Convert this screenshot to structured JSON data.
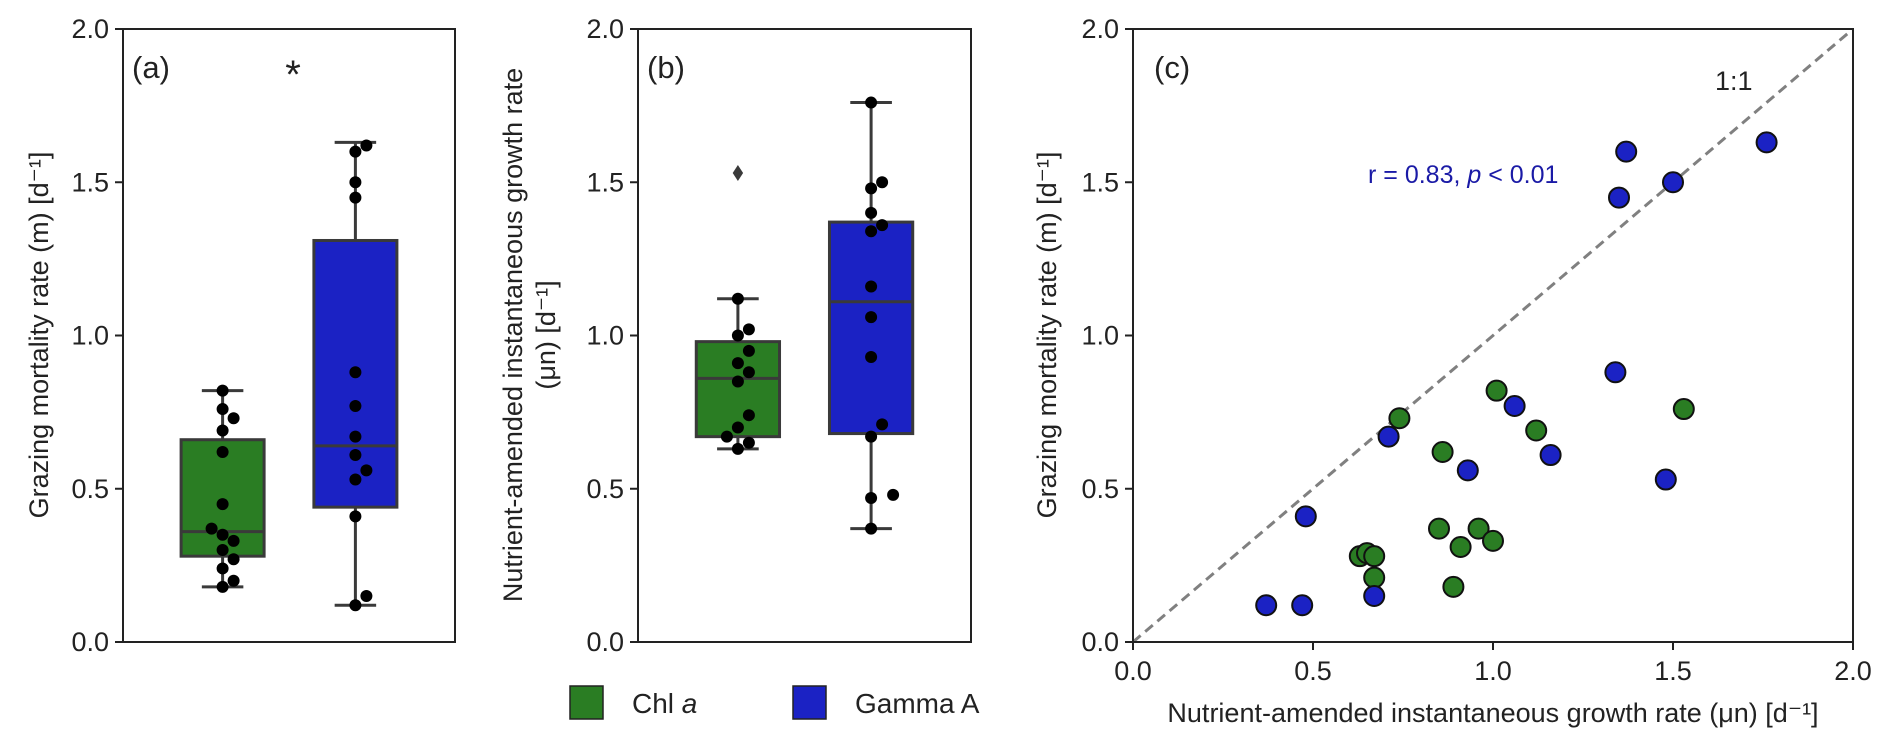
{
  "colors": {
    "chl": "#2a7d23",
    "gamma": "#1b22c4",
    "diag": "#808080",
    "axis": "#222222"
  },
  "legend": [
    {
      "label": "Chl ",
      "label_italic": "a",
      "color": "#2a7d23"
    },
    {
      "label": "Gamma A",
      "label_italic": "",
      "color": "#1b22c4"
    }
  ],
  "chart_data": [
    {
      "type": "box",
      "panel": "(a)",
      "annotation": "*",
      "ylabel": "Grazing mortality rate (m)  [d⁻¹]",
      "ylim": [
        0,
        2
      ],
      "yticks": [
        "0.0",
        "0.5",
        "1.0",
        "1.5",
        "2.0"
      ],
      "boxes": [
        {
          "name": "Chl a",
          "color": "#2a7d23",
          "whisker_low": 0.18,
          "q1": 0.28,
          "median": 0.36,
          "q3": 0.66,
          "whisker_high": 0.82,
          "outliers": [],
          "points": [
            0.18,
            0.2,
            0.24,
            0.27,
            0.3,
            0.33,
            0.35,
            0.37,
            0.45,
            0.62,
            0.69,
            0.73,
            0.76,
            0.82
          ]
        },
        {
          "name": "Gamma A",
          "color": "#1b22c4",
          "whisker_low": 0.12,
          "q1": 0.44,
          "median": 0.64,
          "q3": 1.31,
          "whisker_high": 1.63,
          "outliers": [],
          "points": [
            0.12,
            0.15,
            0.41,
            0.53,
            0.56,
            0.61,
            0.67,
            0.77,
            0.88,
            1.45,
            1.5,
            1.6,
            1.62
          ]
        }
      ]
    },
    {
      "type": "box",
      "panel": "(b)",
      "ylabel_lines": [
        "Nutrient-amended instantaneous growth rate",
        "(μn)  [d⁻¹]"
      ],
      "ylim": [
        0,
        2
      ],
      "yticks": [
        "0.0",
        "0.5",
        "1.0",
        "1.5",
        "2.0"
      ],
      "boxes": [
        {
          "name": "Chl a",
          "color": "#2a7d23",
          "whisker_low": 0.63,
          "q1": 0.67,
          "median": 0.86,
          "q3": 0.98,
          "whisker_high": 1.12,
          "outliers": [
            1.53
          ],
          "points": [
            0.63,
            0.65,
            0.67,
            0.7,
            0.74,
            0.85,
            0.88,
            0.91,
            0.95,
            1.0,
            1.02,
            1.12
          ]
        },
        {
          "name": "Gamma A",
          "color": "#1b22c4",
          "whisker_low": 0.37,
          "q1": 0.68,
          "median": 1.11,
          "q3": 1.37,
          "whisker_high": 1.76,
          "outliers": [],
          "points": [
            0.37,
            0.47,
            0.48,
            0.67,
            0.71,
            0.93,
            1.06,
            1.16,
            1.34,
            1.36,
            1.4,
            1.48,
            1.5,
            1.76
          ]
        }
      ]
    },
    {
      "type": "scatter",
      "panel": "(c)",
      "xlabel": "Nutrient-amended instantaneous growth rate (μn)  [d⁻¹]",
      "ylabel": "Grazing mortality rate (m)  [d⁻¹]",
      "xlim": [
        0,
        2
      ],
      "ylim": [
        0,
        2
      ],
      "xticks": [
        "0.0",
        "0.5",
        "1.0",
        "1.5",
        "2.0"
      ],
      "yticks": [
        "0.0",
        "0.5",
        "1.0",
        "1.5",
        "2.0"
      ],
      "diagonal_label": "1:1",
      "stat_pre": "r = 0.83, ",
      "stat_p": "p",
      "stat_post": " < 0.01",
      "series": [
        {
          "name": "Chl a",
          "color": "#2a7d23",
          "x": [
            0.63,
            0.65,
            0.67,
            0.67,
            0.74,
            0.85,
            0.86,
            0.89,
            0.91,
            0.96,
            1.0,
            1.01,
            1.12,
            1.53
          ],
          "y": [
            0.28,
            0.29,
            0.28,
            0.21,
            0.73,
            0.37,
            0.62,
            0.18,
            0.31,
            0.37,
            0.33,
            0.82,
            0.69,
            0.76
          ]
        },
        {
          "name": "Gamma A",
          "color": "#1b22c4",
          "x": [
            0.37,
            0.47,
            0.48,
            0.67,
            0.71,
            0.93,
            1.06,
            1.16,
            1.34,
            1.35,
            1.37,
            1.48,
            1.5,
            1.76
          ],
          "y": [
            0.12,
            0.12,
            0.41,
            0.15,
            0.67,
            0.56,
            0.77,
            0.61,
            0.88,
            1.45,
            1.6,
            0.53,
            1.5,
            1.63
          ]
        }
      ]
    }
  ]
}
